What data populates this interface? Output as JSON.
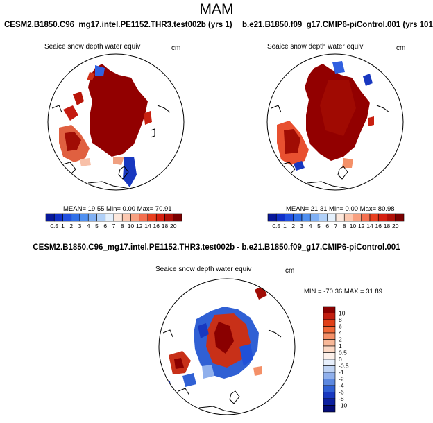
{
  "main_title": "MAM",
  "panels": {
    "left": {
      "case_title": "CESM2.B1850.C96_mg17.intel.PE1152.THR3.test002b (yrs 1)",
      "variable": "Seaice snow depth water equiv",
      "units": "cm",
      "stats": "MEAN=  19.55  Min=   0.00  Max=   70.91"
    },
    "right": {
      "case_title": "b.e21.B1850.f09_g17.CMIP6-piControl.001 (yrs 101)",
      "variable": "Seaice snow depth water equiv",
      "units": "cm",
      "stats": "MEAN=  21.31  Min=   0.00  Max=   80.98"
    },
    "diff": {
      "title": "CESM2.B1850.C96_mg17.intel.PE1152.THR3.test002b - b.e21.B1850.f09_g17.CMIP6-piControl.001",
      "variable": "Seaice snow depth water equiv",
      "units": "cm",
      "stats": "MIN = -70.36 MAX =  31.89"
    }
  },
  "colorbar_abs": {
    "labels": [
      "0.5",
      "1",
      "2",
      "3",
      "4",
      "5",
      "6",
      "7",
      "8",
      "10",
      "12",
      "14",
      "16",
      "18",
      "20"
    ],
    "colors": [
      "#08189a",
      "#1030c8",
      "#2050e0",
      "#3070e8",
      "#5090f0",
      "#80b0f4",
      "#b0d0f8",
      "#e4f0fc",
      "#fde8dc",
      "#fcc8b0",
      "#f8a080",
      "#f47050",
      "#e84020",
      "#d42010",
      "#b01008",
      "#7a0000"
    ]
  },
  "colorbar_diff": {
    "labels": [
      "10",
      "8",
      "6",
      "4",
      "2",
      "1",
      "0.5",
      "0",
      "-0.5",
      "-1",
      "-2",
      "-4",
      "-6",
      "-8",
      "-10"
    ],
    "colors": [
      "#8a0000",
      "#c21e10",
      "#e04018",
      "#f06838",
      "#f49068",
      "#f8b898",
      "#fcd8c4",
      "#fcf0ea",
      "#e8f0fc",
      "#c0d4f4",
      "#90b0ec",
      "#5c88e0",
      "#3060d4",
      "#1838c0",
      "#0c20a0",
      "#040c78"
    ]
  }
}
